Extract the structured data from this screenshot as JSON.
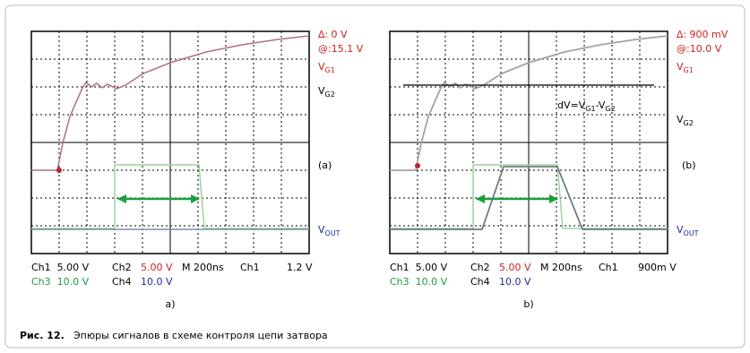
{
  "panels": [
    {
      "cursor_delta": "∆: 0 V",
      "cursor_at": "@:15.1 V",
      "vg1": {
        "v": "V",
        "sub": "G1"
      },
      "vg2": {
        "v": "V",
        "sub": "G2"
      },
      "marker": "(a)",
      "vout": {
        "v": "V",
        "sub": "OUT"
      },
      "readout": {
        "row1": [
          "Ch1  5.00 V",
          "Ch2",
          "5.00 V",
          "M 200ns",
          "Ch1",
          "1.2 V"
        ],
        "row2": [
          "Ch3  10.0 V",
          "Ch4",
          "10.0 V"
        ]
      },
      "label": "a)"
    },
    {
      "cursor_delta": "∆: 900 mV",
      "cursor_at": "@:10.0 V",
      "vg1": {
        "v": "V",
        "sub": "G1"
      },
      "vg2": {
        "v": "V",
        "sub": "G2"
      },
      "marker": "(b)",
      "vout": {
        "v": "V",
        "sub": "OUT"
      },
      "formula": [
        "dV=V",
        "G1",
        "-V",
        "G2"
      ],
      "readout": {
        "row1": [
          "Ch1  5.00 V",
          "Ch2",
          "5.00 V",
          "M 200ns",
          "Ch1",
          "900m V"
        ],
        "row2": [
          "Ch3  10.0 V",
          "Ch4",
          "10.0 V"
        ]
      },
      "label": "b)"
    }
  ],
  "caption": {
    "number": "Рис. 12.",
    "text": "Эпюры сигналов в схеме контроля цепи затвора"
  }
}
